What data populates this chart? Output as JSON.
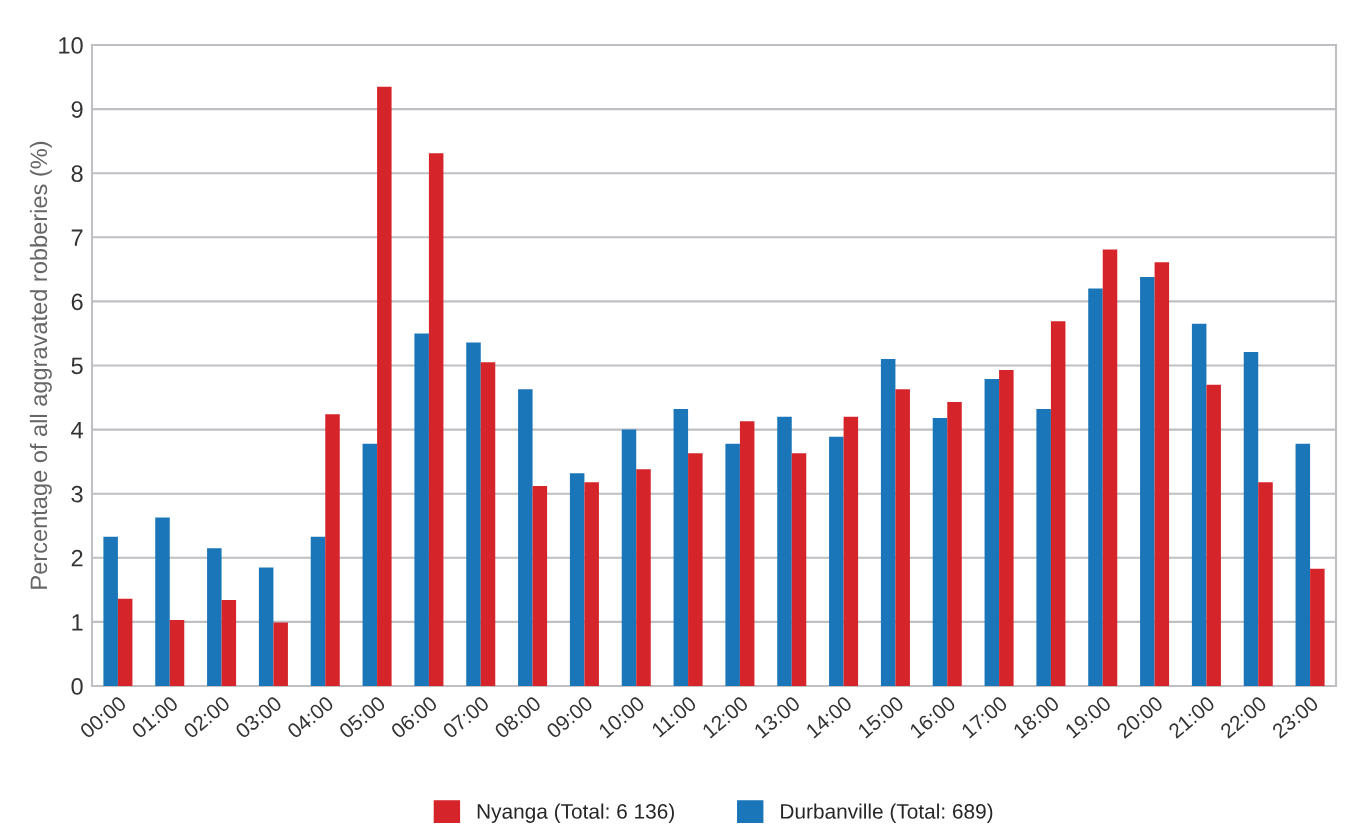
{
  "chart_data": {
    "type": "bar",
    "ylabel": "Percentage of all aggravated robberies (%)",
    "categories": [
      "00:00",
      "01:00",
      "02:00",
      "03:00",
      "04:00",
      "05:00",
      "06:00",
      "07:00",
      "08:00",
      "09:00",
      "10:00",
      "11:00",
      "12:00",
      "13:00",
      "14:00",
      "15:00",
      "16:00",
      "17:00",
      "18:00",
      "19:00",
      "20:00",
      "21:00",
      "22:00",
      "23:00"
    ],
    "series": [
      {
        "name": "Durbanville (Total: 689)",
        "color": "#1a76b8",
        "values": [
          2.33,
          2.63,
          2.15,
          1.85,
          2.33,
          3.78,
          5.5,
          5.36,
          4.63,
          3.32,
          4.0,
          4.32,
          3.78,
          4.2,
          3.89,
          5.1,
          4.18,
          4.79,
          4.32,
          6.2,
          6.38,
          5.65,
          5.21,
          3.78
        ]
      },
      {
        "name": "Nyanga (Total: 6 136)",
        "color": "#d6242b",
        "values": [
          1.36,
          1.03,
          1.34,
          0.99,
          4.24,
          9.35,
          8.31,
          5.05,
          3.12,
          3.18,
          3.38,
          3.63,
          4.13,
          3.63,
          4.2,
          4.63,
          4.43,
          4.93,
          5.69,
          6.81,
          6.61,
          4.7,
          3.18,
          1.83
        ]
      }
    ],
    "ylim": [
      0,
      10
    ],
    "yticks": [
      0,
      1,
      2,
      3,
      4,
      5,
      6,
      7,
      8,
      9,
      10
    ],
    "grid": "y",
    "legend": "bottom"
  }
}
